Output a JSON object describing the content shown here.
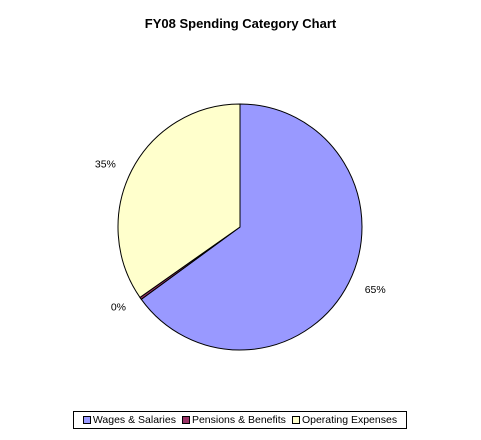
{
  "chart_data": {
    "type": "pie",
    "title": "FY08 Spending Category Chart",
    "categories": [
      "Wages & Salaries",
      "Pensions & Benefits",
      "Operating Expenses"
    ],
    "values": [
      65,
      0.3,
      34.7
    ],
    "labels": [
      "65%",
      "0%",
      "35%"
    ],
    "colors": [
      "#9999ff",
      "#993366",
      "#ffffcc"
    ],
    "legend": "bottom"
  }
}
